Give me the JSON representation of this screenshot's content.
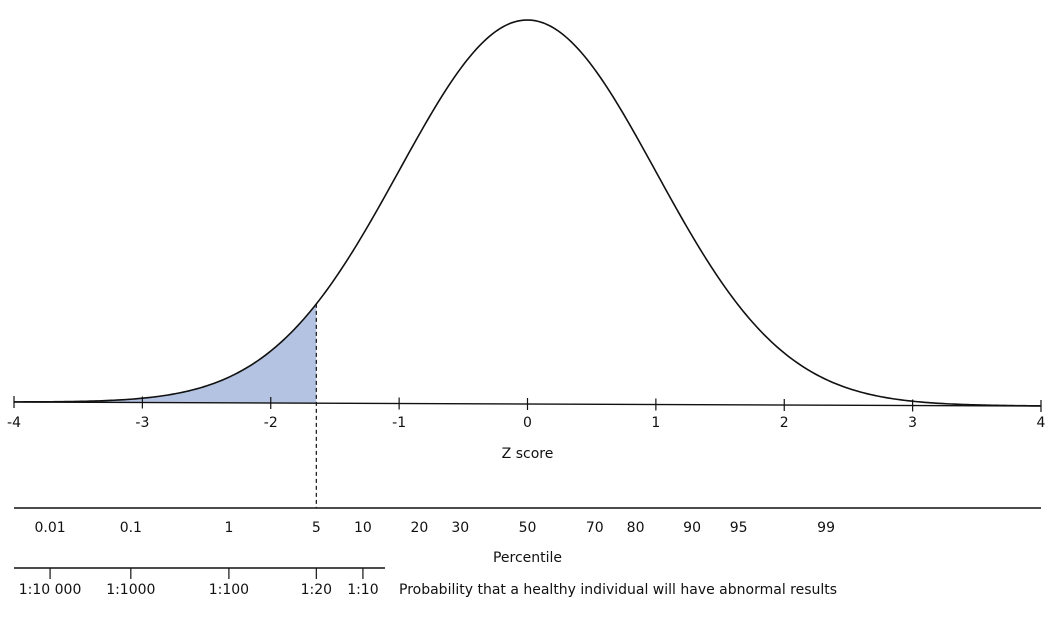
{
  "chart_data": {
    "type": "area",
    "curve": "normal distribution",
    "x_range": [
      -4,
      4
    ],
    "shaded_region": {
      "from": -4,
      "to": -1.645,
      "color": "#b4c3e2"
    },
    "cutoff": {
      "z": -1.645,
      "percentile": "5"
    },
    "z_axis": {
      "label": "Z score",
      "ticks": [
        {
          "z": -4,
          "label": "-4"
        },
        {
          "z": -3,
          "label": "-3"
        },
        {
          "z": -2,
          "label": "-2"
        },
        {
          "z": -1,
          "label": "-1"
        },
        {
          "z": 0,
          "label": "0"
        },
        {
          "z": 1,
          "label": "1"
        },
        {
          "z": 2,
          "label": "2"
        },
        {
          "z": 3,
          "label": "3"
        },
        {
          "z": 4,
          "label": "4"
        }
      ]
    },
    "percentile_axis": {
      "label": "Percentile",
      "ticks": [
        {
          "z": -3.719,
          "label": "0.01"
        },
        {
          "z": -3.09,
          "label": "0.1"
        },
        {
          "z": -2.326,
          "label": "1"
        },
        {
          "z": -1.645,
          "label": "5"
        },
        {
          "z": -1.282,
          "label": "10"
        },
        {
          "z": -0.842,
          "label": "20"
        },
        {
          "z": -0.524,
          "label": "30"
        },
        {
          "z": 0,
          "label": "50"
        },
        {
          "z": 0.524,
          "label": "70"
        },
        {
          "z": 0.842,
          "label": "80"
        },
        {
          "z": 1.282,
          "label": "90"
        },
        {
          "z": 1.645,
          "label": "95"
        },
        {
          "z": 2.326,
          "label": "99"
        }
      ]
    },
    "probability_axis": {
      "label": "Probability that a healthy individual will have abnormal results",
      "ticks": [
        {
          "z": -3.719,
          "label": "1:10 000"
        },
        {
          "z": -3.09,
          "label": "1:1000"
        },
        {
          "z": -2.326,
          "label": "1:100"
        },
        {
          "z": -1.645,
          "label": "1:20"
        },
        {
          "z": -1.282,
          "label": "1:10"
        }
      ]
    }
  }
}
